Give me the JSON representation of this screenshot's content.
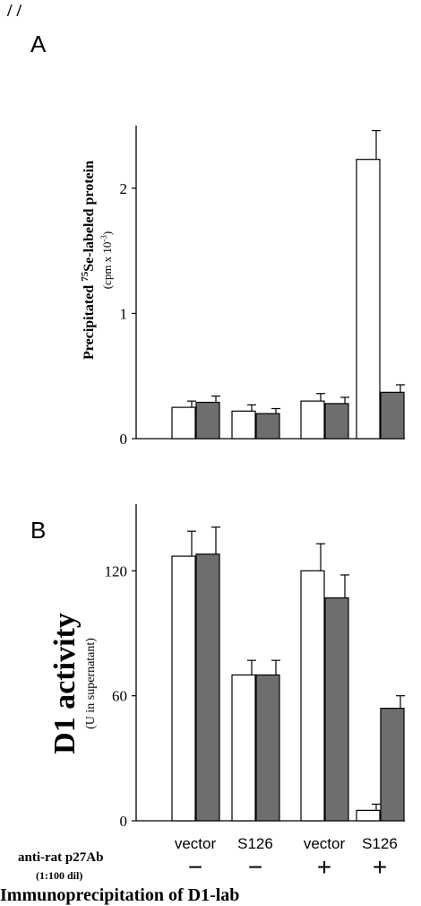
{
  "top_fragment": "/ /",
  "bottom_fragment": "Immunoprecipitation of D1-lab",
  "colors": {
    "bar_open": "#ffffff",
    "bar_filled": "#6e6e6e",
    "stroke": "#000000"
  },
  "categories": [
    "vector",
    "S126",
    "vector",
    "S126"
  ],
  "antibody_row": {
    "label": "anti-rat p27Ab",
    "sublabel": "(1:100 dil)",
    "signs": [
      "−",
      "−",
      "+",
      "+"
    ]
  },
  "chart_data": [
    {
      "type": "bar",
      "panel": "A",
      "ylabel": "Precipitated 75Se-labeled protein",
      "ylabel_parts": {
        "pre": "Precipitated ",
        "sup": "75",
        "post": "Se-labeled protein"
      },
      "ylabel_sub": "(cpm x 10",
      "ylabel_sub_sup": "-3",
      "ylabel_sub_end": ")",
      "ylim": [
        0,
        2.5
      ],
      "yticks": [
        0,
        1,
        2
      ],
      "ytick_labels": [
        "0",
        "1",
        "2"
      ],
      "categories": [
        "vector",
        "S126",
        "vector",
        "S126"
      ],
      "series": [
        {
          "values": [
            0.25,
            0.22,
            0.3,
            2.23
          ],
          "errors": [
            0.05,
            0.05,
            0.06,
            0.23
          ]
        },
        {
          "values": [
            0.29,
            0.2,
            0.28,
            0.37
          ],
          "errors": [
            0.05,
            0.04,
            0.05,
            0.06
          ]
        }
      ]
    },
    {
      "type": "bar",
      "panel": "B",
      "ylabel": "D1 activity",
      "ylabel_sub": "(U in supernatant)",
      "ylim": [
        0,
        152
      ],
      "yticks": [
        0,
        60,
        120
      ],
      "ytick_labels": [
        "0",
        "60",
        "120"
      ],
      "categories": [
        "vector",
        "S126",
        "vector",
        "S126"
      ],
      "series": [
        {
          "values": [
            127,
            70,
            120,
            5
          ],
          "errors": [
            12,
            7,
            13,
            3
          ]
        },
        {
          "values": [
            128,
            70,
            107,
            54
          ],
          "errors": [
            13,
            7,
            11,
            6
          ]
        }
      ]
    }
  ]
}
